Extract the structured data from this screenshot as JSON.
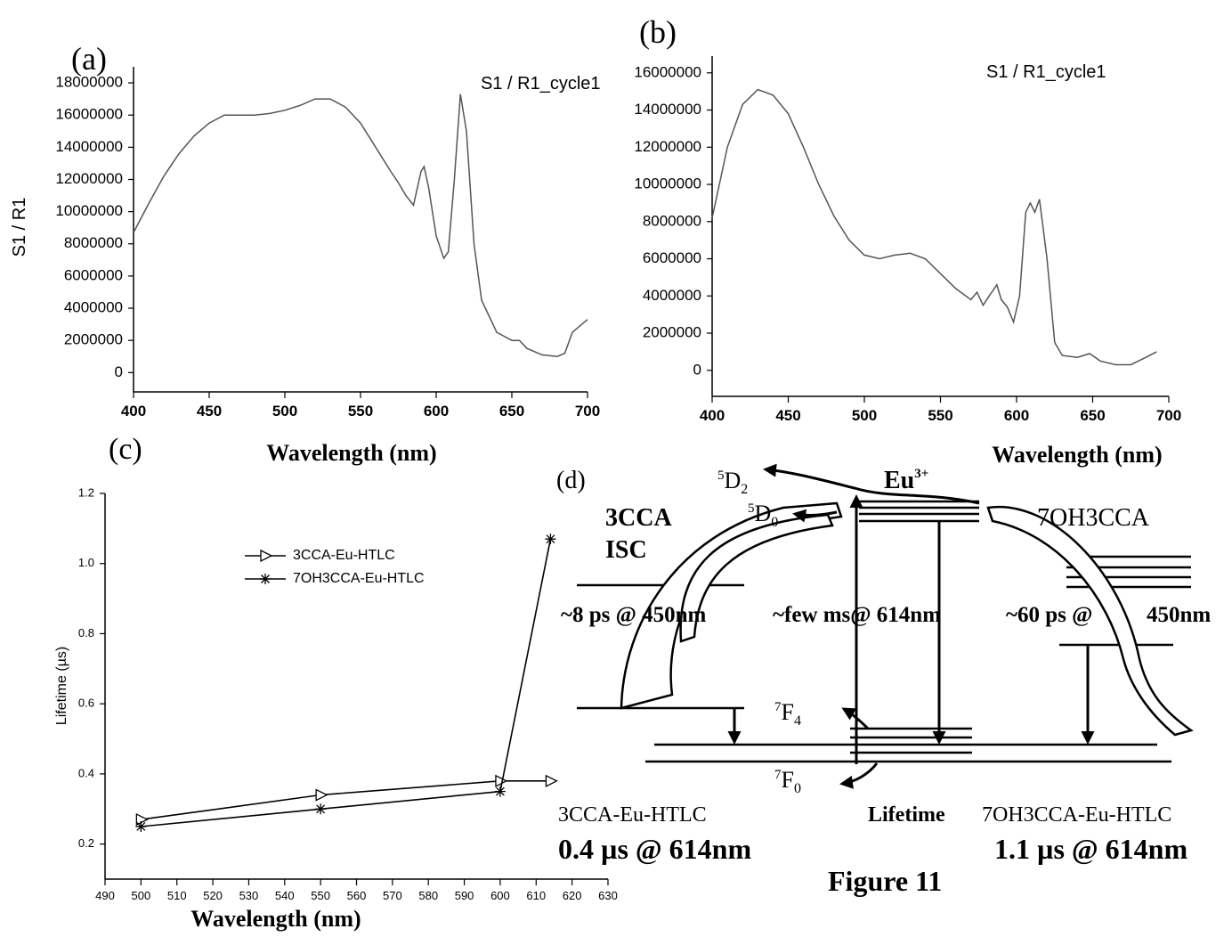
{
  "chart_data": [
    {
      "type": "line",
      "panel_label": "(a)",
      "annotation": "S1 / R1_cycle1",
      "x_label": "Wavelength (nm)",
      "y_label": "S1 / R1",
      "color": "#555555",
      "x": [
        400,
        410,
        420,
        430,
        440,
        450,
        460,
        470,
        480,
        490,
        500,
        510,
        520,
        530,
        540,
        550,
        560,
        570,
        575,
        580,
        585,
        590,
        592,
        595,
        600,
        605,
        608,
        612,
        616,
        620,
        625,
        630,
        640,
        650,
        655,
        660,
        670,
        680,
        685,
        690,
        700
      ],
      "values": [
        8700000,
        10500000,
        12200000,
        13600000,
        14700000,
        15500000,
        16000000,
        16000000,
        16000000,
        16100000,
        16300000,
        16600000,
        17000000,
        17000000,
        16500000,
        15500000,
        14000000,
        12500000,
        11800000,
        11000000,
        10400000,
        12500000,
        12800000,
        11500000,
        8500000,
        7100000,
        7500000,
        12000000,
        17300000,
        15000000,
        8000000,
        4500000,
        2500000,
        2000000,
        2000000,
        1500000,
        1100000,
        1000000,
        1200000,
        2500000,
        3300000
      ],
      "xlim": [
        400,
        700
      ],
      "xticks": [
        400,
        450,
        500,
        550,
        600,
        650,
        700
      ],
      "ylim": [
        -1200000,
        19000000
      ],
      "yticks": [
        0,
        2000000,
        4000000,
        6000000,
        8000000,
        10000000,
        12000000,
        14000000,
        16000000,
        18000000
      ]
    },
    {
      "type": "line",
      "panel_label": "(b)",
      "annotation": "S1 / R1_cycle1",
      "x_label": "Wavelength (nm)",
      "color": "#555555",
      "x": [
        400,
        410,
        420,
        430,
        440,
        450,
        460,
        470,
        480,
        490,
        500,
        510,
        520,
        530,
        540,
        550,
        560,
        570,
        574,
        578,
        582,
        587,
        590,
        594,
        598,
        602,
        606,
        609,
        612,
        615,
        620,
        625,
        630,
        640,
        648,
        655,
        665,
        675,
        685,
        692
      ],
      "values": [
        8200000,
        12000000,
        14300000,
        15100000,
        14800000,
        13800000,
        12000000,
        10000000,
        8300000,
        7000000,
        6200000,
        6000000,
        6200000,
        6300000,
        6000000,
        5200000,
        4400000,
        3800000,
        4200000,
        3500000,
        4000000,
        4600000,
        3800000,
        3400000,
        2600000,
        4000000,
        8500000,
        9000000,
        8500000,
        9200000,
        6000000,
        1500000,
        800000,
        700000,
        900000,
        500000,
        300000,
        300000,
        700000,
        1000000
      ],
      "xlim": [
        400,
        700
      ],
      "xticks": [
        400,
        450,
        500,
        550,
        600,
        650,
        700
      ],
      "ylim": [
        -1400000,
        16900000
      ],
      "yticks": [
        0,
        2000000,
        4000000,
        6000000,
        8000000,
        10000000,
        12000000,
        14000000,
        16000000
      ]
    },
    {
      "type": "line",
      "panel_label": "(c)",
      "x_label": "Wavelength (nm)",
      "y_label": "Lifetime (µs)",
      "x": [
        500,
        550,
        600,
        614
      ],
      "series": [
        {
          "name": "3CCA-Eu-HTLC",
          "color": "#000000",
          "marker": "triangle",
          "values": [
            0.27,
            0.34,
            0.38,
            0.38
          ]
        },
        {
          "name": "7OH3CCA-Eu-HTLC",
          "color": "#000000",
          "marker": "star",
          "values": [
            0.25,
            0.3,
            0.35,
            1.07
          ]
        }
      ],
      "xlim": [
        490,
        630
      ],
      "xticks": [
        490,
        500,
        510,
        520,
        530,
        540,
        550,
        560,
        570,
        580,
        590,
        600,
        610,
        620,
        630
      ],
      "ylim": [
        0.1,
        1.2
      ],
      "yticks": [
        0.2,
        0.4,
        0.6,
        0.8,
        {
          "value": 1,
          "label": "1.0"
        },
        1.2
      ]
    }
  ],
  "diagram": {
    "panel_label": "(d)",
    "ion": {
      "text": "Eu",
      "sup": "3+"
    },
    "levels": [
      {
        "sup": "5",
        "term": "D",
        "sub": "2"
      },
      {
        "sup": "5",
        "term": "D",
        "sub": "0"
      },
      {
        "sup": "7",
        "term": "F",
        "sub": "4"
      },
      {
        "sup": "7",
        "term": "F",
        "sub": "0"
      }
    ],
    "left_label": "3CCA",
    "isc_label": "ISC",
    "right_label": "7OH3CCA",
    "left_time": "~8 ps @ 450nm",
    "middle_time": "~few ms@ 614nm",
    "right_time": "~60 ps @",
    "right_wavelength": "450nm",
    "left_compound": "3CCA-Eu-HTLC",
    "left_lifetime": "0.4 µs @ 614nm",
    "lifetime_label": "Lifetime",
    "right_compound": "7OH3CCA-Eu-HTLC",
    "right_lifetime": "1.1 µs @ 614nm"
  },
  "figure_title": "Figure 11"
}
